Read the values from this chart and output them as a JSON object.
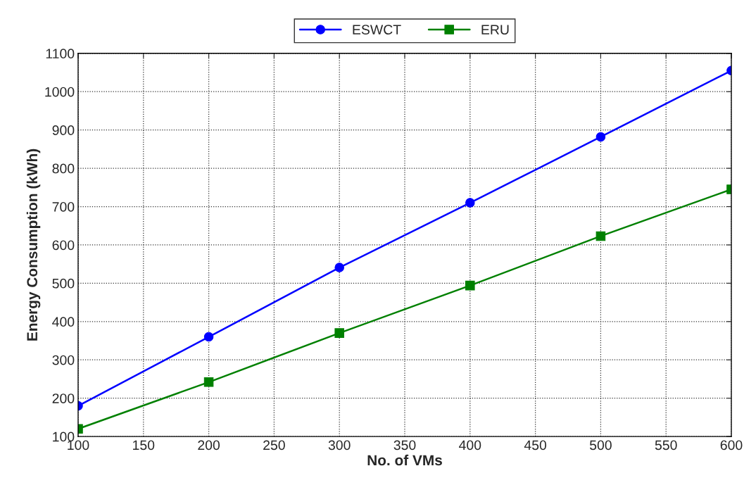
{
  "chart_data": {
    "type": "line",
    "xlabel": "No. of VMs",
    "ylabel": "Energy Consumption (kWh)",
    "x": [
      100,
      200,
      300,
      400,
      500,
      600
    ],
    "series": [
      {
        "name": "ESWCT",
        "color": "#0000ff",
        "marker": "circle",
        "values": [
          180,
          360,
          541,
          710,
          882,
          1055
        ]
      },
      {
        "name": "ERU",
        "color": "#008000",
        "marker": "square",
        "values": [
          120,
          242,
          370,
          494,
          623,
          745
        ]
      }
    ],
    "xlim": [
      100,
      600
    ],
    "xticks": [
      100,
      150,
      200,
      250,
      300,
      350,
      400,
      450,
      500,
      550,
      600
    ],
    "ylim": [
      100,
      1100
    ],
    "yticks": [
      100,
      200,
      300,
      400,
      500,
      600,
      700,
      800,
      900,
      1000,
      1100
    ],
    "grid": true,
    "legend": "top",
    "line_style": "solid"
  }
}
